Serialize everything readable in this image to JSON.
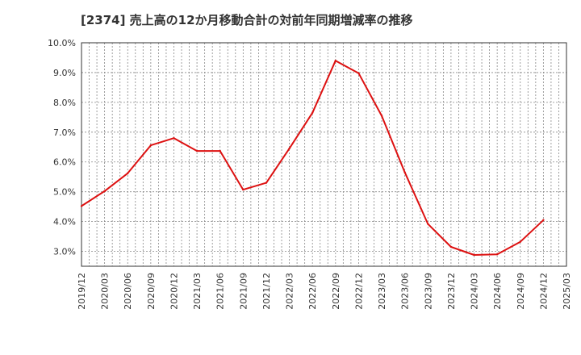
{
  "chart_data": {
    "type": "line",
    "title": "[2374]  売上高の12か月移動合計の対前年同期増減率の推移",
    "xlabel": "",
    "ylabel": "",
    "x": [
      "2019/12",
      "2020/03",
      "2020/06",
      "2020/09",
      "2020/12",
      "2021/03",
      "2021/06",
      "2021/09",
      "2021/12",
      "2022/03",
      "2022/06",
      "2022/09",
      "2022/12",
      "2023/03",
      "2023/06",
      "2023/09",
      "2023/12",
      "2024/03",
      "2024/06",
      "2024/09",
      "2024/12",
      "2025/03"
    ],
    "y_ticks": [
      "3.0%",
      "4.0%",
      "5.0%",
      "6.0%",
      "7.0%",
      "8.0%",
      "9.0%",
      "10.0%"
    ],
    "ylim": [
      2.5,
      10.0
    ],
    "grid": true,
    "series": [
      {
        "name": "売上高の12か月移動合計の対前年同期増減率",
        "color": "#dd1111",
        "values": [
          4.52,
          5.02,
          5.62,
          6.56,
          6.8,
          6.37,
          6.37,
          5.07,
          5.3,
          6.45,
          7.65,
          9.4,
          8.98,
          7.55,
          5.65,
          3.92,
          3.15,
          2.88,
          2.9,
          3.32,
          4.05,
          null
        ]
      }
    ]
  }
}
